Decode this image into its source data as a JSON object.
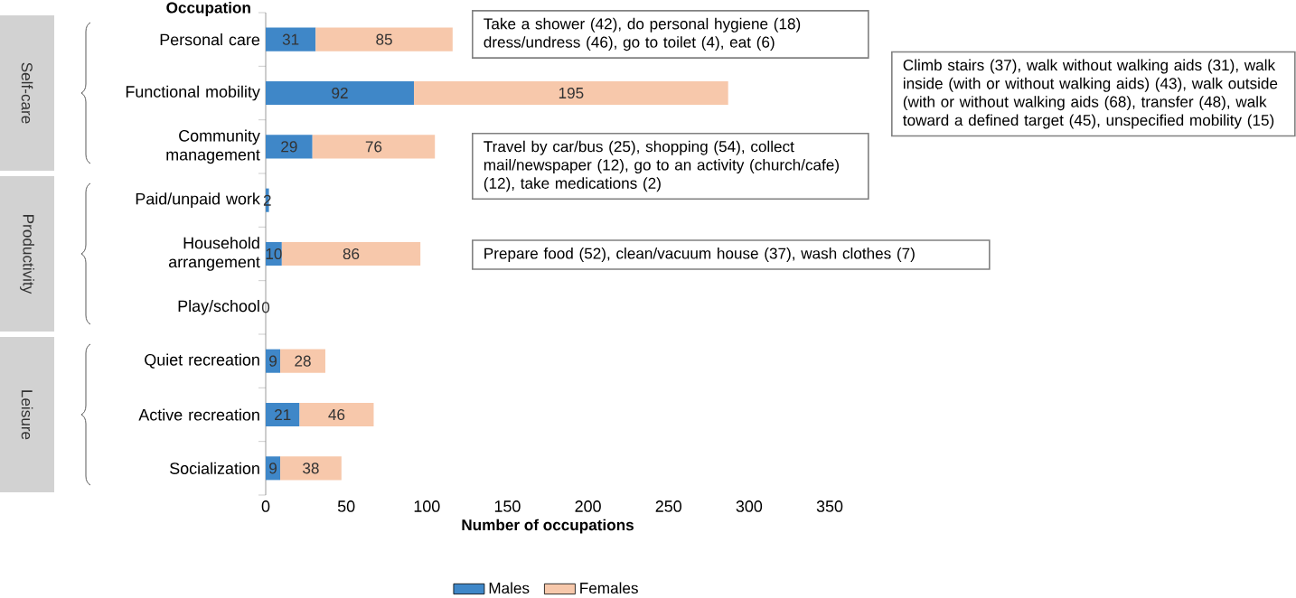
{
  "chart_data": {
    "type": "bar",
    "orientation": "horizontal",
    "stacked": true,
    "xlabel": "Number of occupations",
    "ylabel": "Occupation",
    "categories": [
      "Personal care",
      "Functional mobility",
      "Community management",
      "Paid/unpaid work",
      "Household arrangement",
      "Play/school",
      "Quiet recreation",
      "Active recreation",
      "Socialization"
    ],
    "series": [
      {
        "name": "Males",
        "color": "#3f87c8",
        "values": [
          31,
          92,
          29,
          2,
          10,
          0,
          9,
          21,
          9
        ]
      },
      {
        "name": "Females",
        "color": "#f7c8ab",
        "values": [
          85,
          195,
          76,
          null,
          86,
          null,
          28,
          46,
          38
        ]
      }
    ],
    "xlim": [
      0,
      350
    ],
    "xticks": [
      0,
      50,
      100,
      150,
      200,
      250,
      300,
      350
    ],
    "data_labels": true,
    "legend": "bottom",
    "grid": false,
    "annotations": [
      "Take a shower (42), do personal hygiene (18) dress/undress (46), go to toilet (4), eat (6)",
      "Climb stairs (37), walk without walking aids (31), walk inside (with or without walking aids) (43), walk outside (with or without walking aids (68), transfer (48), walk toward a defined target (45), unspecified mobility (15)",
      "Travel by car/bus (25), shopping (54), collect mail/newspaper (12), go to an activity (church/cafe) (12), take medications (2)",
      "Prepare food (52), clean/vacuum house (37), wash clothes (7)",
      "Self-care",
      "Productivity",
      "Leisure"
    ]
  }
}
